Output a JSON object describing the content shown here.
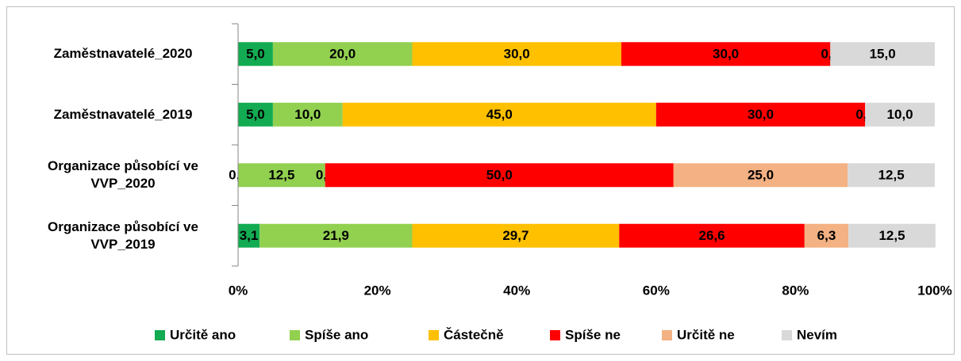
{
  "chart_data": {
    "type": "stacked_barh",
    "categories": [
      "Zaměstnavatelé_2020",
      "Zaměstnavatelé_2019",
      "Organizace působící ve VVP_2020",
      "Organizace působící ve VVP_2019"
    ],
    "series": [
      {
        "name": "Určitě ano",
        "color": "#13ab52",
        "values": [
          5.0,
          5.0,
          0.0,
          3.1
        ],
        "value_labels": [
          "5,0",
          "5,0",
          "0,0",
          "3,1"
        ]
      },
      {
        "name": "Spíše ano",
        "color": "#92d050",
        "values": [
          20.0,
          10.0,
          12.5,
          21.9
        ],
        "value_labels": [
          "20,0",
          "10,0",
          "12,5",
          "21,9"
        ]
      },
      {
        "name": "Částečně",
        "color": "#ffc000",
        "values": [
          30.0,
          45.0,
          0.0,
          29.7
        ],
        "value_labels": [
          "30,0",
          "45,0",
          "0,0",
          "29,7"
        ]
      },
      {
        "name": "Spíše ne",
        "color": "#ff0000",
        "values": [
          30.0,
          30.0,
          50.0,
          26.6
        ],
        "value_labels": [
          "30,0",
          "30,0",
          "50,0",
          "26,6"
        ]
      },
      {
        "name": "Určitě ne",
        "color": "#f4b183",
        "values": [
          0.0,
          0.0,
          25.0,
          6.3
        ],
        "value_labels": [
          "0,0",
          "0,0",
          "25,0",
          "6,3"
        ]
      },
      {
        "name": "Nevím",
        "color": "#d9d9d9",
        "values": [
          15.0,
          10.0,
          12.5,
          12.5
        ],
        "value_labels": [
          "15,0",
          "10,0",
          "12,5",
          "12,5"
        ]
      }
    ],
    "xlim": [
      0,
      100
    ],
    "xticks": [
      {
        "value": 0,
        "label": "0%"
      },
      {
        "value": 20,
        "label": "20%"
      },
      {
        "value": 40,
        "label": "40%"
      },
      {
        "value": 60,
        "label": "60%"
      },
      {
        "value": 80,
        "label": "80%"
      },
      {
        "value": 100,
        "label": "100%"
      }
    ],
    "legend": "bottom",
    "grid": false
  }
}
